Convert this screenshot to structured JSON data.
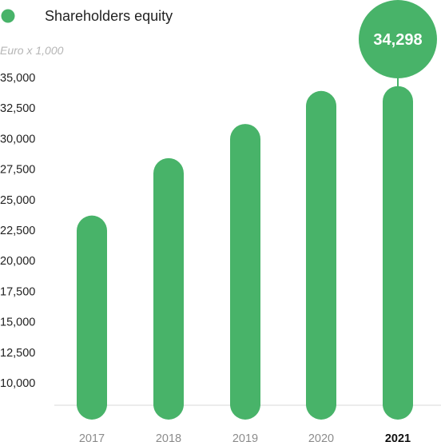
{
  "chart_data": {
    "type": "bar",
    "legend": "Shareholders equity",
    "unit_label": "Euro x 1,000",
    "categories": [
      "2017",
      "2018",
      "2019",
      "2020",
      "2021"
    ],
    "series": [
      {
        "name": "Shareholders equity",
        "values": [
          23700,
          28400,
          31200,
          33900,
          34298
        ]
      }
    ],
    "highlight_category": "2021",
    "callout": "34,298",
    "y_ticks": [
      "35,000",
      "32,500",
      "30,000",
      "27,500",
      "25,000",
      "22,500",
      "20,000",
      "17,500",
      "15,000",
      "12,500",
      "10,000"
    ],
    "ylim": [
      7500,
      35000
    ],
    "bar_color": "#48b369",
    "grid": false
  }
}
